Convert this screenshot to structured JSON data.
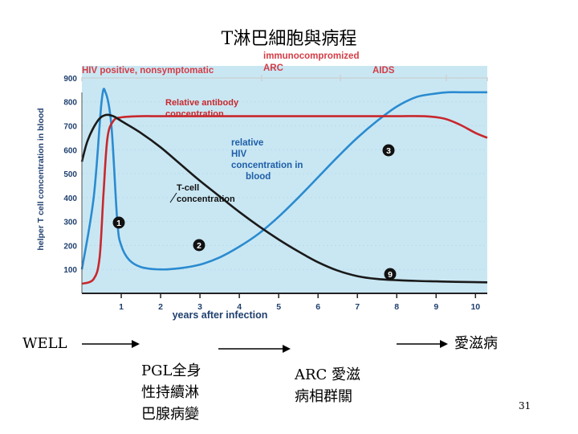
{
  "slide": {
    "title": "T淋巴細胞與病程",
    "page_number": "31"
  },
  "stages": [
    {
      "label": "WELL"
    },
    {
      "label": "PGL全身\n性持續淋\n巴腺病變"
    },
    {
      "label": "ARC 愛滋\n病相群關"
    },
    {
      "label": "愛滋病"
    }
  ],
  "chart_data": {
    "type": "line",
    "phase_labels": {
      "hiv_positive": "HIV positive, nonsymptomatic",
      "immuno": "immunocompromized",
      "arc": "ARC",
      "aids": "AIDS"
    },
    "ylabel": "helper T cell concentration in blood",
    "xlabel": "years after infection",
    "xlim": [
      0,
      10.3
    ],
    "ylim": [
      0,
      950
    ],
    "x_ticks": [
      1,
      2,
      3,
      4,
      5,
      6,
      7,
      8,
      9,
      10
    ],
    "y_ticks": [
      100,
      200,
      300,
      400,
      500,
      600,
      700,
      800,
      900
    ],
    "annotations": {
      "antibody": "Relative antibody concentration",
      "hiv": "relative HIV concentration in blood",
      "tcell": "T-cell concentration"
    },
    "markers": [
      "1",
      "2",
      "3",
      "9"
    ],
    "series": [
      {
        "key": "tcell",
        "color": "#1a1a1a",
        "x": [
          0,
          0.15,
          0.4,
          0.6,
          0.8,
          1.0,
          1.5,
          2.0,
          2.5,
          3.0,
          3.5,
          4.0,
          4.5,
          5.0,
          5.5,
          6.0,
          6.5,
          7.0,
          7.5,
          8.0,
          8.5,
          9.0,
          9.5,
          10.3
        ],
        "y": [
          550,
          640,
          720,
          745,
          740,
          720,
          670,
          610,
          540,
          470,
          405,
          340,
          280,
          225,
          175,
          130,
          95,
          72,
          60,
          55,
          52,
          50,
          48,
          46
        ]
      },
      {
        "key": "antibody",
        "color": "#c8282d",
        "x": [
          0,
          0.3,
          0.45,
          0.55,
          0.65,
          0.8,
          1.0,
          1.5,
          2,
          3,
          4,
          5,
          6,
          7,
          8,
          8.7,
          9.2,
          9.6,
          10.0,
          10.3
        ],
        "y": [
          40,
          60,
          150,
          420,
          650,
          720,
          735,
          740,
          740,
          740,
          740,
          740,
          740,
          740,
          740,
          740,
          730,
          705,
          670,
          650
        ]
      },
      {
        "key": "hiv",
        "color": "#2a8bd0",
        "x": [
          0,
          0.3,
          0.5,
          0.6,
          0.75,
          0.9,
          1.0,
          1.2,
          1.5,
          2.0,
          2.5,
          3.0,
          3.5,
          4.0,
          4.5,
          5.0,
          5.5,
          6.0,
          6.5,
          7.0,
          7.5,
          8.0,
          8.5,
          9.0,
          9.3,
          9.6,
          10.0,
          10.3
        ],
        "y": [
          100,
          400,
          800,
          840,
          700,
          300,
          200,
          140,
          110,
          100,
          105,
          120,
          150,
          195,
          250,
          320,
          400,
          485,
          570,
          650,
          720,
          780,
          820,
          835,
          840,
          840,
          840,
          840
        ]
      }
    ]
  },
  "colors": {
    "phase_text": "#d43c46",
    "annotation_blue": "#1f5ea8",
    "annotation_red": "#c8282d",
    "plot_bg": "#c9e7f3"
  }
}
